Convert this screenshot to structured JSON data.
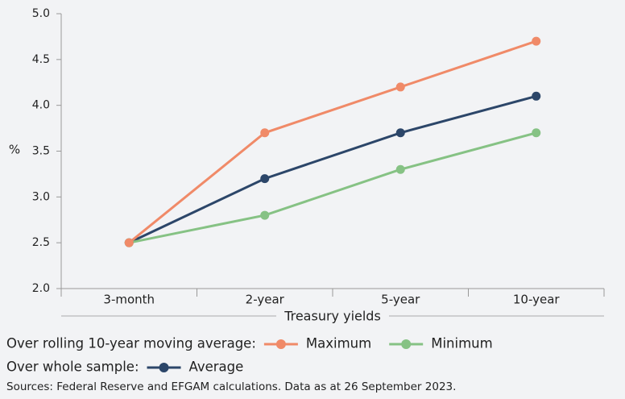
{
  "chart_data": {
    "type": "line",
    "y_label": "%",
    "x_label": "Treasury yields",
    "categories": [
      "3-month",
      "2-year",
      "5-year",
      "10-year"
    ],
    "series": [
      {
        "name": "Maximum",
        "color": "#f08a68",
        "values": [
          2.5,
          3.7,
          4.2,
          4.7
        ]
      },
      {
        "name": "Minimum",
        "color": "#86c284",
        "values": [
          2.5,
          2.8,
          3.3,
          3.7
        ]
      },
      {
        "name": "Average",
        "color": "#2c4669",
        "values": [
          2.5,
          3.2,
          3.7,
          4.1
        ]
      }
    ],
    "legend_groups": [
      {
        "label": "Over rolling 10-year moving average:",
        "series": [
          0,
          1
        ]
      },
      {
        "label": "Over whole sample:",
        "series": [
          2
        ]
      }
    ],
    "ylim": [
      2.0,
      5.0
    ],
    "yticks": [
      {
        "value": 2.0,
        "label": "2.0"
      },
      {
        "value": 2.5,
        "label": "2.5"
      },
      {
        "value": 3.0,
        "label": "3.0"
      },
      {
        "value": 3.5,
        "label": "3.5"
      },
      {
        "value": 4.0,
        "label": "4.0"
      },
      {
        "value": 4.5,
        "label": "4.5"
      },
      {
        "value": 5.0,
        "label": "5.0"
      }
    ],
    "source": "Sources: Federal Reserve and EFGAM calculations. Data as at 26 September 2023."
  }
}
